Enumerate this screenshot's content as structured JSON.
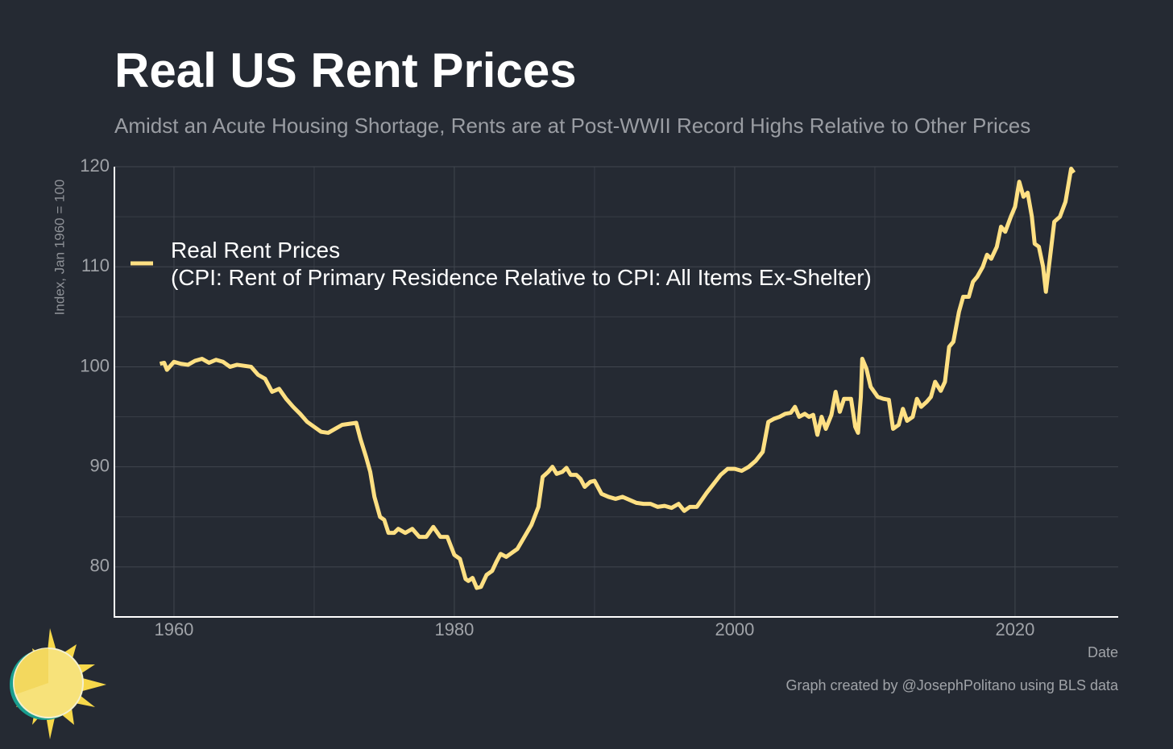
{
  "chart_data": {
    "type": "line",
    "title": "Real US Rent Prices",
    "subtitle": "Amidst an Acute Housing Shortage, Rents are at Post-WWII Record Highs Relative to Other Prices",
    "ylabel": "Index, Jan 1960 = 100",
    "xlabel": "Date",
    "caption": "Graph created by @JosephPolitano using BLS data",
    "xlim": [
      1955.75,
      2027.36
    ],
    "ylim": [
      75,
      120
    ],
    "xticks": [
      1960,
      1980,
      2000,
      2020
    ],
    "yticks": [
      80,
      90,
      100,
      110,
      120
    ],
    "grid": true,
    "minor_grid": true,
    "legend": "upper left",
    "x": [
      1959.0,
      1959.3,
      1959.5,
      1960,
      1960.5,
      1961,
      1961.5,
      1962,
      1962.5,
      1963,
      1963.5,
      1964,
      1964.5,
      1965,
      1965.5,
      1966,
      1966.5,
      1967,
      1967.5,
      1968,
      1968.5,
      1969,
      1969.5,
      1970,
      1970.5,
      1971,
      1971.5,
      1972,
      1972.5,
      1973,
      1973.3,
      1973.7,
      1974,
      1974.3,
      1974.7,
      1975,
      1975.3,
      1975.7,
      1976,
      1976.5,
      1977,
      1977.5,
      1978,
      1978.5,
      1979,
      1979.5,
      1980,
      1980.4,
      1980.8,
      1981,
      1981.3,
      1981.6,
      1981.9,
      1982.3,
      1982.7,
      1983,
      1983.3,
      1983.7,
      1984,
      1984.5,
      1985,
      1985.5,
      1986,
      1986.3,
      1986.7,
      1987,
      1987.3,
      1987.7,
      1988,
      1988.3,
      1988.7,
      1989,
      1989.3,
      1989.7,
      1990,
      1990.5,
      1991,
      1991.5,
      1992,
      1992.5,
      1993,
      1993.5,
      1994,
      1994.5,
      1995,
      1995.5,
      1996,
      1996.4,
      1996.8,
      1997.3,
      1997.7,
      1998,
      1998.5,
      1999,
      1999.5,
      2000,
      2000.5,
      2001,
      2001.5,
      2002,
      2002.4,
      2002.8,
      2003.2,
      2003.6,
      2004,
      2004.3,
      2004.6,
      2005,
      2005.3,
      2005.6,
      2005.9,
      2006.2,
      2006.5,
      2006.9,
      2007.2,
      2007.5,
      2007.8,
      2008.3,
      2008.6,
      2008.8,
      2009.0,
      2009.1,
      2009.4,
      2009.7,
      2010.2,
      2010.6,
      2011,
      2011.3,
      2011.7,
      2012,
      2012.3,
      2012.7,
      2013,
      2013.3,
      2013.7,
      2014,
      2014.3,
      2014.7,
      2015.0,
      2015.3,
      2015.6,
      2016,
      2016.3,
      2016.7,
      2017,
      2017.3,
      2017.7,
      2018,
      2018.3,
      2018.7,
      2019,
      2019.3,
      2019.7,
      2020,
      2020.3,
      2020.6,
      2020.9,
      2021.2,
      2021.4,
      2021.7,
      2022.0,
      2022.2,
      2022.5,
      2022.8,
      2023.2,
      2023.6,
      2024,
      2024.2
    ],
    "series": [
      {
        "name": "Real Rent Prices\n(CPI: Rent of Primary Residence Relative to CPI: All Items Ex-Shelter)",
        "color": "#ffe083",
        "values": [
          100.3,
          100.4,
          99.7,
          100.5,
          100.3,
          100.2,
          100.6,
          100.8,
          100.4,
          100.7,
          100.5,
          100.0,
          100.2,
          100.1,
          100.0,
          99.2,
          98.8,
          97.5,
          97.8,
          96.8,
          96.0,
          95.3,
          94.5,
          94.0,
          93.5,
          93.4,
          93.8,
          94.2,
          94.3,
          94.4,
          92.8,
          91.0,
          89.5,
          87.0,
          85.0,
          84.7,
          83.4,
          83.4,
          83.8,
          83.4,
          83.8,
          83.0,
          83.0,
          84.0,
          83.0,
          83.0,
          81.2,
          80.8,
          78.8,
          78.6,
          78.9,
          77.9,
          78.0,
          79.2,
          79.6,
          80.5,
          81.3,
          81.0,
          81.3,
          81.8,
          83.0,
          84.2,
          86.0,
          89.0,
          89.5,
          90.0,
          89.3,
          89.5,
          89.9,
          89.2,
          89.2,
          88.8,
          88.0,
          88.5,
          88.6,
          87.3,
          87.0,
          86.8,
          87.0,
          86.7,
          86.4,
          86.3,
          86.3,
          86.0,
          86.1,
          85.9,
          86.3,
          85.6,
          86.0,
          86.0,
          86.8,
          87.4,
          88.3,
          89.2,
          89.8,
          89.8,
          89.6,
          90.0,
          90.6,
          91.5,
          94.5,
          94.8,
          95.0,
          95.3,
          95.4,
          96.0,
          95.0,
          95.3,
          95.0,
          95.2,
          93.2,
          95.0,
          93.8,
          95.2,
          97.5,
          95.5,
          96.8,
          96.8,
          94.0,
          93.4,
          97.0,
          100.8,
          99.8,
          98.0,
          97.0,
          96.8,
          96.7,
          93.8,
          94.2,
          95.8,
          94.6,
          95.0,
          96.8,
          96.0,
          96.5,
          97.0,
          98.5,
          97.6,
          98.5,
          102.0,
          102.5,
          105.5,
          107.0,
          107.0,
          108.5,
          109.0,
          110.0,
          111.2,
          110.8,
          112.0,
          114.0,
          113.5,
          115.0,
          116.0,
          118.5,
          117.0,
          117.4,
          115.0,
          112.3,
          112.0,
          110.0,
          107.5,
          111.0,
          114.5,
          115.0,
          116.5,
          119.8,
          119.4
        ]
      }
    ]
  }
}
